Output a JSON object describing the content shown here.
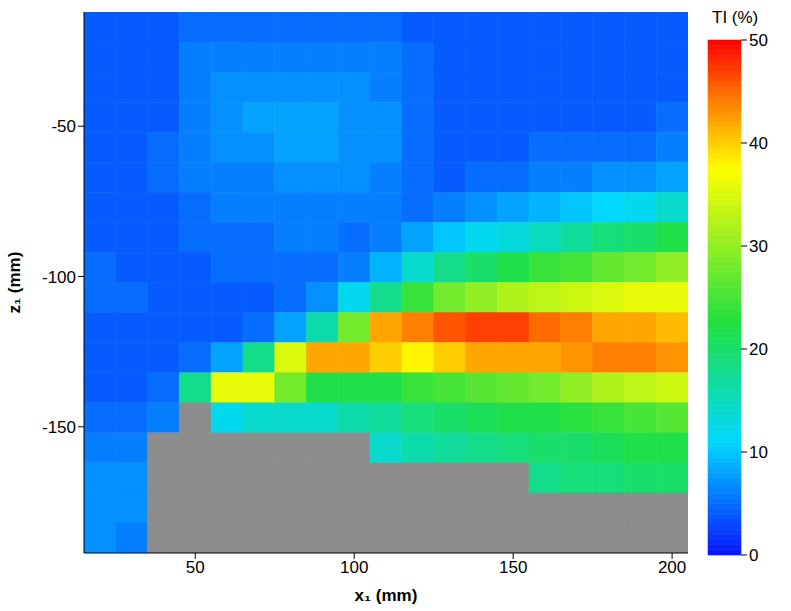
{
  "chart_data": {
    "type": "heatmap",
    "x_label": "x₁ (mm)",
    "y_label": "z₁ (mm)",
    "xlim": [
      15,
      205
    ],
    "xticks": [
      50,
      100,
      150,
      200
    ],
    "ylim": [
      -192,
      -12
    ],
    "yticks": [
      -150,
      -100,
      -50
    ],
    "x": [
      20,
      30,
      40,
      50,
      60,
      70,
      80,
      90,
      100,
      110,
      120,
      130,
      140,
      150,
      160,
      170,
      180,
      190,
      200
    ],
    "y": [
      -17,
      -27,
      -37,
      -47,
      -57,
      -67,
      -77,
      -87,
      -97,
      -107,
      -117,
      -127,
      -137,
      -147,
      -157,
      -167,
      -177,
      -187
    ],
    "columns": [
      [
        4,
        4,
        4,
        4,
        4,
        4,
        4,
        4,
        5,
        5,
        4,
        4,
        4,
        5,
        6,
        7,
        7,
        7
      ],
      [
        4,
        4,
        4,
        4,
        4,
        4,
        4,
        4,
        4,
        5,
        4,
        4,
        4,
        5,
        6,
        7,
        7,
        6
      ],
      [
        4,
        4,
        4,
        4,
        5,
        5,
        4,
        4,
        4,
        4,
        4,
        4,
        5,
        6,
        null,
        null,
        null,
        null
      ],
      [
        5,
        6,
        6,
        6,
        6,
        6,
        5,
        5,
        4,
        4,
        4,
        5,
        18,
        null,
        null,
        null,
        null,
        null
      ],
      [
        5,
        6,
        7,
        7,
        7,
        6,
        6,
        5,
        5,
        4,
        4,
        8,
        36,
        12,
        null,
        null,
        null,
        null
      ],
      [
        5,
        6,
        7,
        8,
        7,
        6,
        6,
        5,
        5,
        4,
        5,
        18,
        36,
        14,
        null,
        null,
        null,
        null
      ],
      [
        5,
        6,
        7,
        8,
        8,
        7,
        6,
        6,
        5,
        5,
        8,
        35,
        28,
        14,
        null,
        null,
        null,
        null
      ],
      [
        5,
        6,
        7,
        8,
        8,
        7,
        6,
        6,
        5,
        7,
        16,
        42,
        22,
        14,
        null,
        null,
        null,
        null
      ],
      [
        5,
        6,
        7,
        7,
        7,
        7,
        6,
        5,
        6,
        12,
        28,
        42,
        22,
        16,
        null,
        null,
        null,
        null
      ],
      [
        5,
        6,
        6,
        7,
        7,
        6,
        6,
        6,
        9,
        18,
        42,
        40,
        22,
        17,
        14,
        null,
        null,
        null
      ],
      [
        4,
        5,
        5,
        5,
        5,
        5,
        5,
        8,
        14,
        24,
        44,
        38,
        24,
        19,
        16,
        null,
        null,
        null
      ],
      [
        4,
        4,
        4,
        4,
        4,
        4,
        6,
        10,
        18,
        28,
        46,
        40,
        25,
        20,
        17,
        null,
        null,
        null
      ],
      [
        4,
        4,
        4,
        4,
        4,
        5,
        7,
        12,
        20,
        30,
        47,
        42,
        26,
        21,
        18,
        null,
        null,
        null
      ],
      [
        4,
        4,
        4,
        4,
        4,
        5,
        8,
        13,
        22,
        32,
        47,
        42,
        27,
        22,
        19,
        null,
        null,
        null
      ],
      [
        4,
        4,
        4,
        4,
        5,
        6,
        9,
        15,
        24,
        33,
        45,
        42,
        28,
        22,
        20,
        18,
        null,
        null
      ],
      [
        4,
        4,
        4,
        4,
        5,
        6,
        10,
        17,
        25,
        34,
        44,
        43,
        30,
        23,
        20,
        19,
        null,
        null
      ],
      [
        4,
        4,
        4,
        4,
        5,
        7,
        11,
        19,
        27,
        35,
        42,
        44,
        32,
        24,
        21,
        19,
        null,
        null
      ],
      [
        4,
        4,
        4,
        4,
        5,
        7,
        12,
        20,
        28,
        36,
        42,
        44,
        33,
        25,
        22,
        20,
        null,
        null
      ],
      [
        4,
        4,
        4,
        5,
        6,
        8,
        14,
        22,
        30,
        36,
        41,
        43,
        34,
        26,
        22,
        20,
        null,
        null
      ]
    ],
    "colorbar": {
      "title": "TI (%)",
      "range": [
        0,
        50
      ],
      "ticks": [
        0,
        10,
        20,
        30,
        40,
        50
      ]
    }
  }
}
